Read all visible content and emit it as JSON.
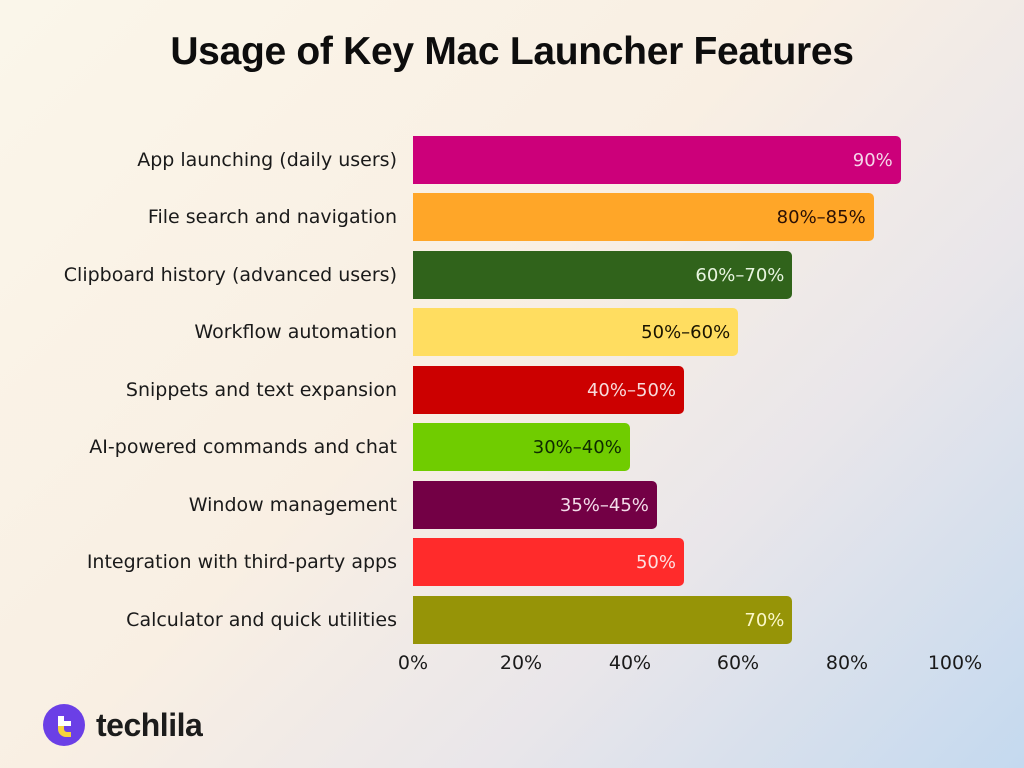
{
  "title": "Usage of Key Mac Launcher Features",
  "brand": {
    "name": "techlila",
    "logo_icon": "techlila-logo-icon",
    "logo_colors": {
      "circle": "#6b3fe6",
      "accent": "#f6d33c"
    }
  },
  "axis": {
    "ticks": [
      "0%",
      "20%",
      "40%",
      "60%",
      "80%",
      "100%"
    ]
  },
  "bars": [
    {
      "label": "App launching (daily users)",
      "value_label": "90%",
      "color": "#cc007a",
      "text_color": "#f5d6ea"
    },
    {
      "label": "File search and navigation",
      "value_label": "80%–85%",
      "color": "#ffa628",
      "text_color": "#2a1005"
    },
    {
      "label": "Clipboard history (advanced users)",
      "value_label": "60%–70%",
      "color": "#30631b",
      "text_color": "#e8f5e0"
    },
    {
      "label": "Workflow automation",
      "value_label": "50%–60%",
      "color": "#ffdd60",
      "text_color": "#1a1400"
    },
    {
      "label": "Snippets and text expansion",
      "value_label": "40%–50%",
      "color": "#cc0000",
      "text_color": "#f8dada"
    },
    {
      "label": "AI-powered commands and chat",
      "value_label": "30%–40%",
      "color": "#70cc00",
      "text_color": "#0e2a00"
    },
    {
      "label": "Window management",
      "value_label": "35%–45%",
      "color": "#730045",
      "text_color": "#f3dcea"
    },
    {
      "label": "Integration with third-party apps",
      "value_label": "50%",
      "color": "#ff2b2b",
      "text_color": "#fde0e0"
    },
    {
      "label": "Calculator and quick utilities",
      "value_label": "70%",
      "color": "#969407",
      "text_color": "#fcf8c8"
    }
  ],
  "chart_data": {
    "type": "bar",
    "orientation": "horizontal",
    "title": "Usage of Key Mac Launcher Features",
    "xlabel": "",
    "ylabel": "",
    "xlim": [
      0,
      100
    ],
    "x_ticks": [
      "0%",
      "20%",
      "40%",
      "60%",
      "80%",
      "100%"
    ],
    "grid": false,
    "legend": "none",
    "categories": [
      "App launching (daily users)",
      "File search and navigation",
      "Clipboard history (advanced users)",
      "Workflow automation",
      "Snippets and text expansion",
      "AI-powered commands and chat",
      "Window management",
      "Integration with third-party apps",
      "Calculator and quick utilities"
    ],
    "values": [
      90,
      85,
      70,
      60,
      50,
      40,
      45,
      50,
      70
    ],
    "ranges": [
      [
        90,
        90
      ],
      [
        80,
        85
      ],
      [
        60,
        70
      ],
      [
        50,
        60
      ],
      [
        40,
        50
      ],
      [
        30,
        40
      ],
      [
        35,
        45
      ],
      [
        50,
        50
      ],
      [
        70,
        70
      ]
    ],
    "data_labels": [
      "90%",
      "80%–85%",
      "60%–70%",
      "50%–60%",
      "40%–50%",
      "30%–40%",
      "35%–45%",
      "50%",
      "70%"
    ],
    "colors": [
      "#cc007a",
      "#ffa628",
      "#30631b",
      "#ffdd60",
      "#cc0000",
      "#70cc00",
      "#730045",
      "#ff2b2b",
      "#969407"
    ]
  }
}
